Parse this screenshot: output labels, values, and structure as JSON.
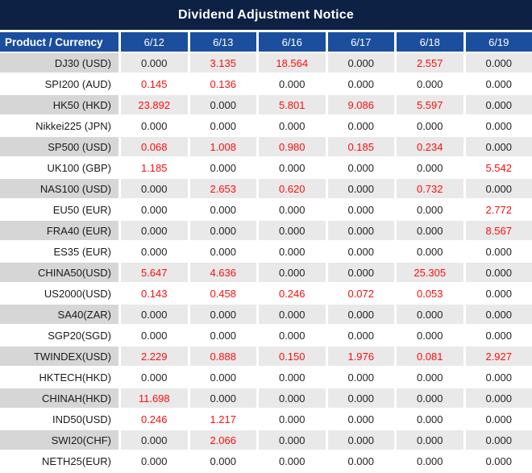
{
  "chart_data": {
    "type": "table",
    "title": "Dividend Adjustment Notice",
    "product_column_label": "Product / Currency",
    "date_columns": [
      "6/12",
      "6/13",
      "6/16",
      "6/17",
      "6/18",
      "6/19"
    ],
    "rows": [
      {
        "product": "DJ30 (USD)",
        "values": [
          "0.000",
          "3.135",
          "18.564",
          "0.000",
          "2.557",
          "0.000"
        ]
      },
      {
        "product": "SPI200 (AUD)",
        "values": [
          "0.145",
          "0.136",
          "0.000",
          "0.000",
          "0.000",
          "0.000"
        ]
      },
      {
        "product": "HK50 (HKD)",
        "values": [
          "23.892",
          "0.000",
          "5.801",
          "9.086",
          "5.597",
          "0.000"
        ]
      },
      {
        "product": "Nikkei225 (JPN)",
        "values": [
          "0.000",
          "0.000",
          "0.000",
          "0.000",
          "0.000",
          "0.000"
        ]
      },
      {
        "product": "SP500 (USD)",
        "values": [
          "0.068",
          "1.008",
          "0.980",
          "0.185",
          "0.234",
          "0.000"
        ]
      },
      {
        "product": "UK100 (GBP)",
        "values": [
          "1.185",
          "0.000",
          "0.000",
          "0.000",
          "0.000",
          "5.542"
        ]
      },
      {
        "product": "NAS100 (USD)",
        "values": [
          "0.000",
          "2.653",
          "0.620",
          "0.000",
          "0.732",
          "0.000"
        ]
      },
      {
        "product": "EU50 (EUR)",
        "values": [
          "0.000",
          "0.000",
          "0.000",
          "0.000",
          "0.000",
          "2.772"
        ]
      },
      {
        "product": "FRA40 (EUR)",
        "values": [
          "0.000",
          "0.000",
          "0.000",
          "0.000",
          "0.000",
          "8.567"
        ]
      },
      {
        "product": "ES35 (EUR)",
        "values": [
          "0.000",
          "0.000",
          "0.000",
          "0.000",
          "0.000",
          "0.000"
        ]
      },
      {
        "product": "CHINA50(USD)",
        "values": [
          "5.647",
          "4.636",
          "0.000",
          "0.000",
          "25.305",
          "0.000"
        ]
      },
      {
        "product": "US2000(USD)",
        "values": [
          "0.143",
          "0.458",
          "0.246",
          "0.072",
          "0.053",
          "0.000"
        ]
      },
      {
        "product": "SA40(ZAR)",
        "values": [
          "0.000",
          "0.000",
          "0.000",
          "0.000",
          "0.000",
          "0.000"
        ]
      },
      {
        "product": "SGP20(SGD)",
        "values": [
          "0.000",
          "0.000",
          "0.000",
          "0.000",
          "0.000",
          "0.000"
        ]
      },
      {
        "product": "TWINDEX(USD)",
        "values": [
          "2.229",
          "0.888",
          "0.150",
          "1.976",
          "0.081",
          "2.927"
        ]
      },
      {
        "product": "HKTECH(HKD)",
        "values": [
          "0.000",
          "0.000",
          "0.000",
          "0.000",
          "0.000",
          "0.000"
        ]
      },
      {
        "product": "CHINAH(HKD)",
        "values": [
          "11.698",
          "0.000",
          "0.000",
          "0.000",
          "0.000",
          "0.000"
        ]
      },
      {
        "product": "IND50(USD)",
        "values": [
          "0.246",
          "1.217",
          "0.000",
          "0.000",
          "0.000",
          "0.000"
        ]
      },
      {
        "product": "SWI20(CHF)",
        "values": [
          "0.000",
          "2.066",
          "0.000",
          "0.000",
          "0.000",
          "0.000"
        ]
      },
      {
        "product": "NETH25(EUR)",
        "values": [
          "0.000",
          "0.000",
          "0.000",
          "0.000",
          "0.000",
          "0.000"
        ]
      }
    ],
    "layout_hints": {
      "striped_rows": "odd rows gray, even rows white",
      "value_color_rule": "non-zero values rendered red, zeros black",
      "gridlines": "white separators between all cells"
    },
    "colors": {
      "title_bg": "#0d2145",
      "header_bg": "#1b4f9e",
      "header_text": "#ffffff",
      "stripe_product_bg": "#d6d6d6",
      "stripe_value_bg": "#e9e9e9",
      "value_red": "#fe0d0d",
      "value_black": "#242424",
      "gridline": "#ffffff"
    }
  }
}
